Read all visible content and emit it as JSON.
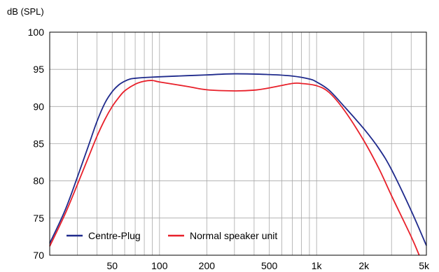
{
  "chart_data": {
    "type": "line",
    "title": "",
    "ylabel": "dB (SPL)",
    "xlabel": "",
    "x_scale": "log",
    "xlim": [
      20,
      5000
    ],
    "ylim": [
      70,
      100
    ],
    "yticks": [
      70,
      75,
      80,
      85,
      90,
      95,
      100
    ],
    "xtick_values": [
      50,
      100,
      200,
      500,
      1000,
      2000,
      5000
    ],
    "xtick_labels": [
      "50",
      "100",
      "200",
      "500",
      "1k",
      "2k",
      "5k"
    ],
    "grid": true,
    "legend_position": "bottom-left",
    "series": [
      {
        "name": "Centre-Plug",
        "color": "#1f2a8c",
        "x": [
          20,
          25,
          30,
          35,
          40,
          45,
          50,
          55,
          60,
          65,
          70,
          80,
          100,
          150,
          200,
          300,
          500,
          700,
          900,
          1000,
          1200,
          1500,
          2000,
          2500,
          3000,
          4000,
          5000
        ],
        "y": [
          71.6,
          76.0,
          80.5,
          84.5,
          88.0,
          90.5,
          92.0,
          92.9,
          93.4,
          93.7,
          93.8,
          93.9,
          94.0,
          94.15,
          94.25,
          94.4,
          94.3,
          94.1,
          93.7,
          93.3,
          92.2,
          90.0,
          87.0,
          84.3,
          81.5,
          76.0,
          71.3
        ]
      },
      {
        "name": "Normal speaker unit",
        "color": "#e8202a",
        "x": [
          20,
          25,
          30,
          35,
          40,
          45,
          50,
          55,
          60,
          70,
          80,
          90,
          100,
          150,
          200,
          300,
          400,
          500,
          700,
          800,
          1000,
          1200,
          1500,
          2000,
          2500,
          3000,
          4000,
          4500
        ],
        "y": [
          71.2,
          75.5,
          79.5,
          83.0,
          86.0,
          88.3,
          90.0,
          91.2,
          92.1,
          93.0,
          93.4,
          93.5,
          93.3,
          92.7,
          92.25,
          92.1,
          92.2,
          92.5,
          93.1,
          93.1,
          92.8,
          91.9,
          89.5,
          85.4,
          81.6,
          78.0,
          72.5,
          70.0
        ]
      }
    ]
  }
}
